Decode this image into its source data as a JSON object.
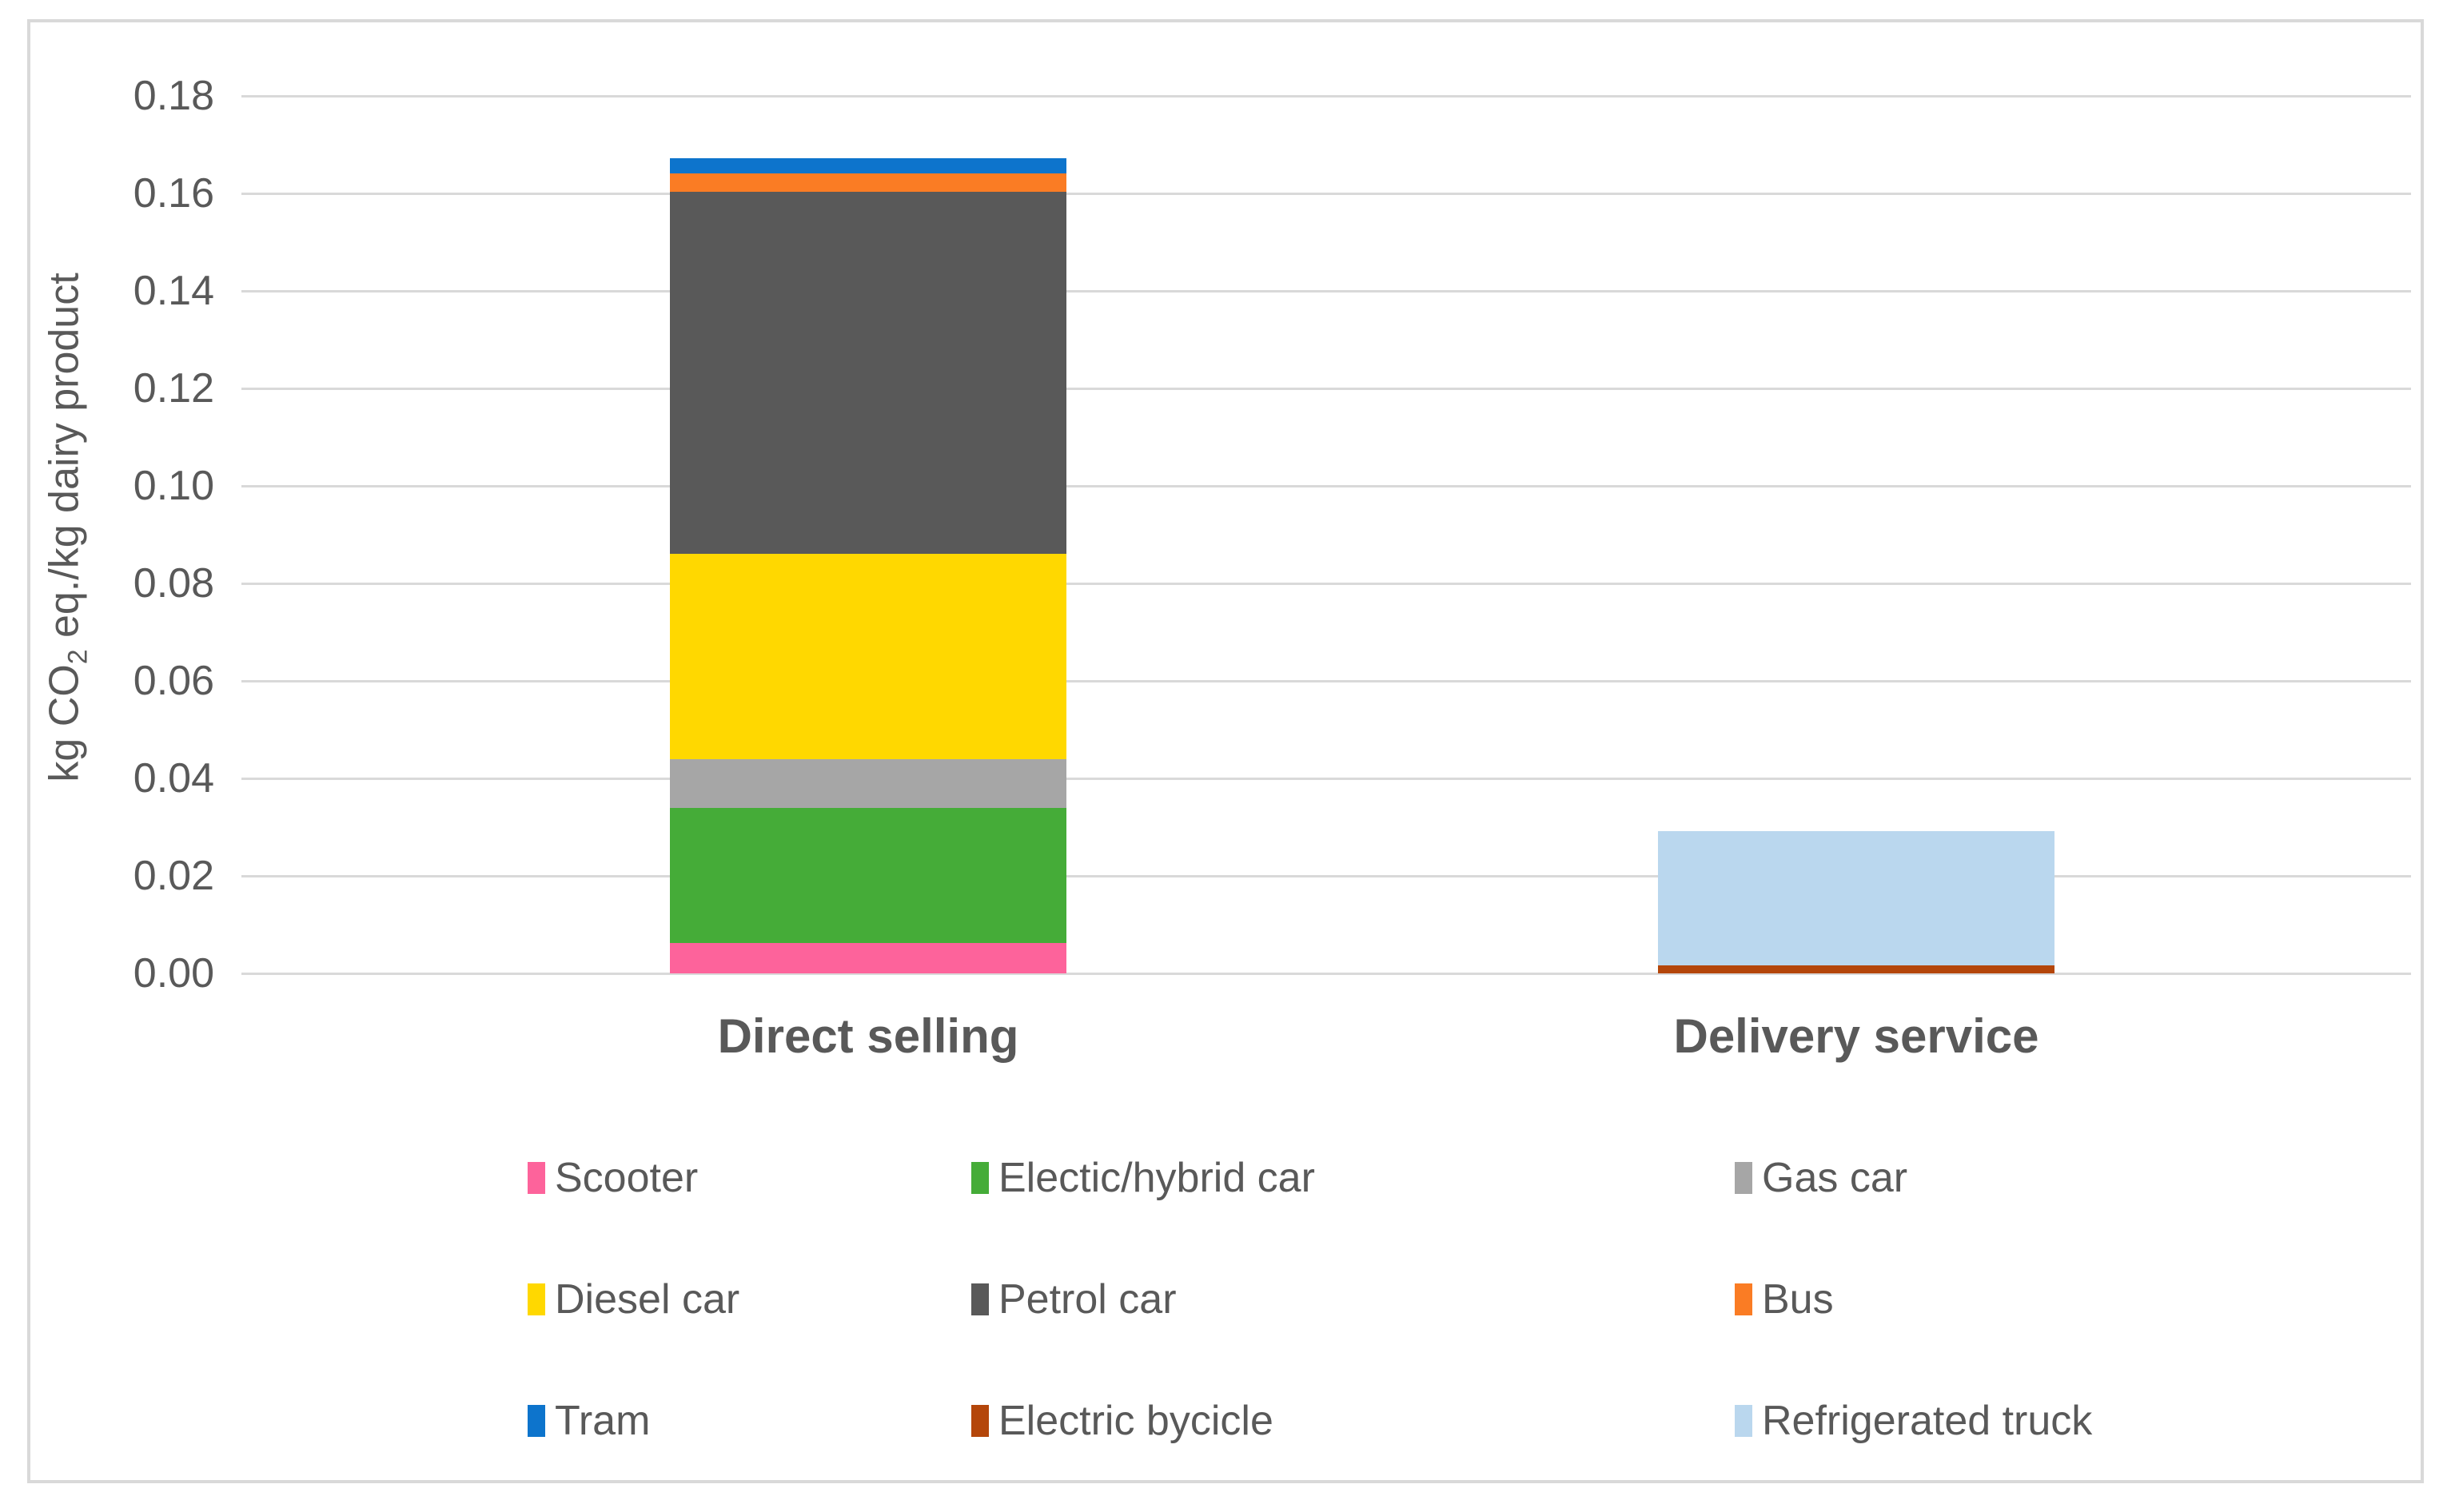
{
  "chart_data": {
    "type": "bar",
    "stacked": true,
    "title": "",
    "xlabel": "",
    "ylabel": "kg CO2 eq./kg dairy product",
    "ylim": [
      0,
      0.18
    ],
    "ytick_step": 0.02,
    "yticks": [
      "0.00",
      "0.02",
      "0.04",
      "0.06",
      "0.08",
      "0.10",
      "0.12",
      "0.14",
      "0.16",
      "0.18"
    ],
    "grid": true,
    "legend_position": "bottom",
    "categories": [
      "Direct selling",
      "Delivery service"
    ],
    "series": [
      {
        "name": "Scooter",
        "color": "#FD639B",
        "values": [
          0.0062,
          0
        ]
      },
      {
        "name": "Electic/hybrid car",
        "color": "#45AC38",
        "values": [
          0.0277,
          0
        ]
      },
      {
        "name": "Gas car",
        "color": "#A6A6A6",
        "values": [
          0.01,
          0
        ]
      },
      {
        "name": "Diesel car",
        "color": "#FFD800",
        "values": [
          0.0421,
          0
        ]
      },
      {
        "name": "Petrol car",
        "color": "#595959",
        "values": [
          0.0743,
          0
        ]
      },
      {
        "name": "Bus",
        "color": "#FA7C24",
        "values": [
          0.0038,
          0
        ]
      },
      {
        "name": "Tram",
        "color": "#0D74CC",
        "values": [
          0.0031,
          0
        ]
      },
      {
        "name": "Electric bycicle",
        "color": "#B4460A",
        "values": [
          0,
          0.0016
        ]
      },
      {
        "name": "Refrigerated truck",
        "color": "#BAD7EE",
        "values": [
          0,
          0.0275
        ]
      }
    ]
  },
  "axis": {
    "y_label_prefix": "kg CO",
    "y_label_sub": "2",
    "y_label_suffix": " eq./kg dairy product"
  }
}
